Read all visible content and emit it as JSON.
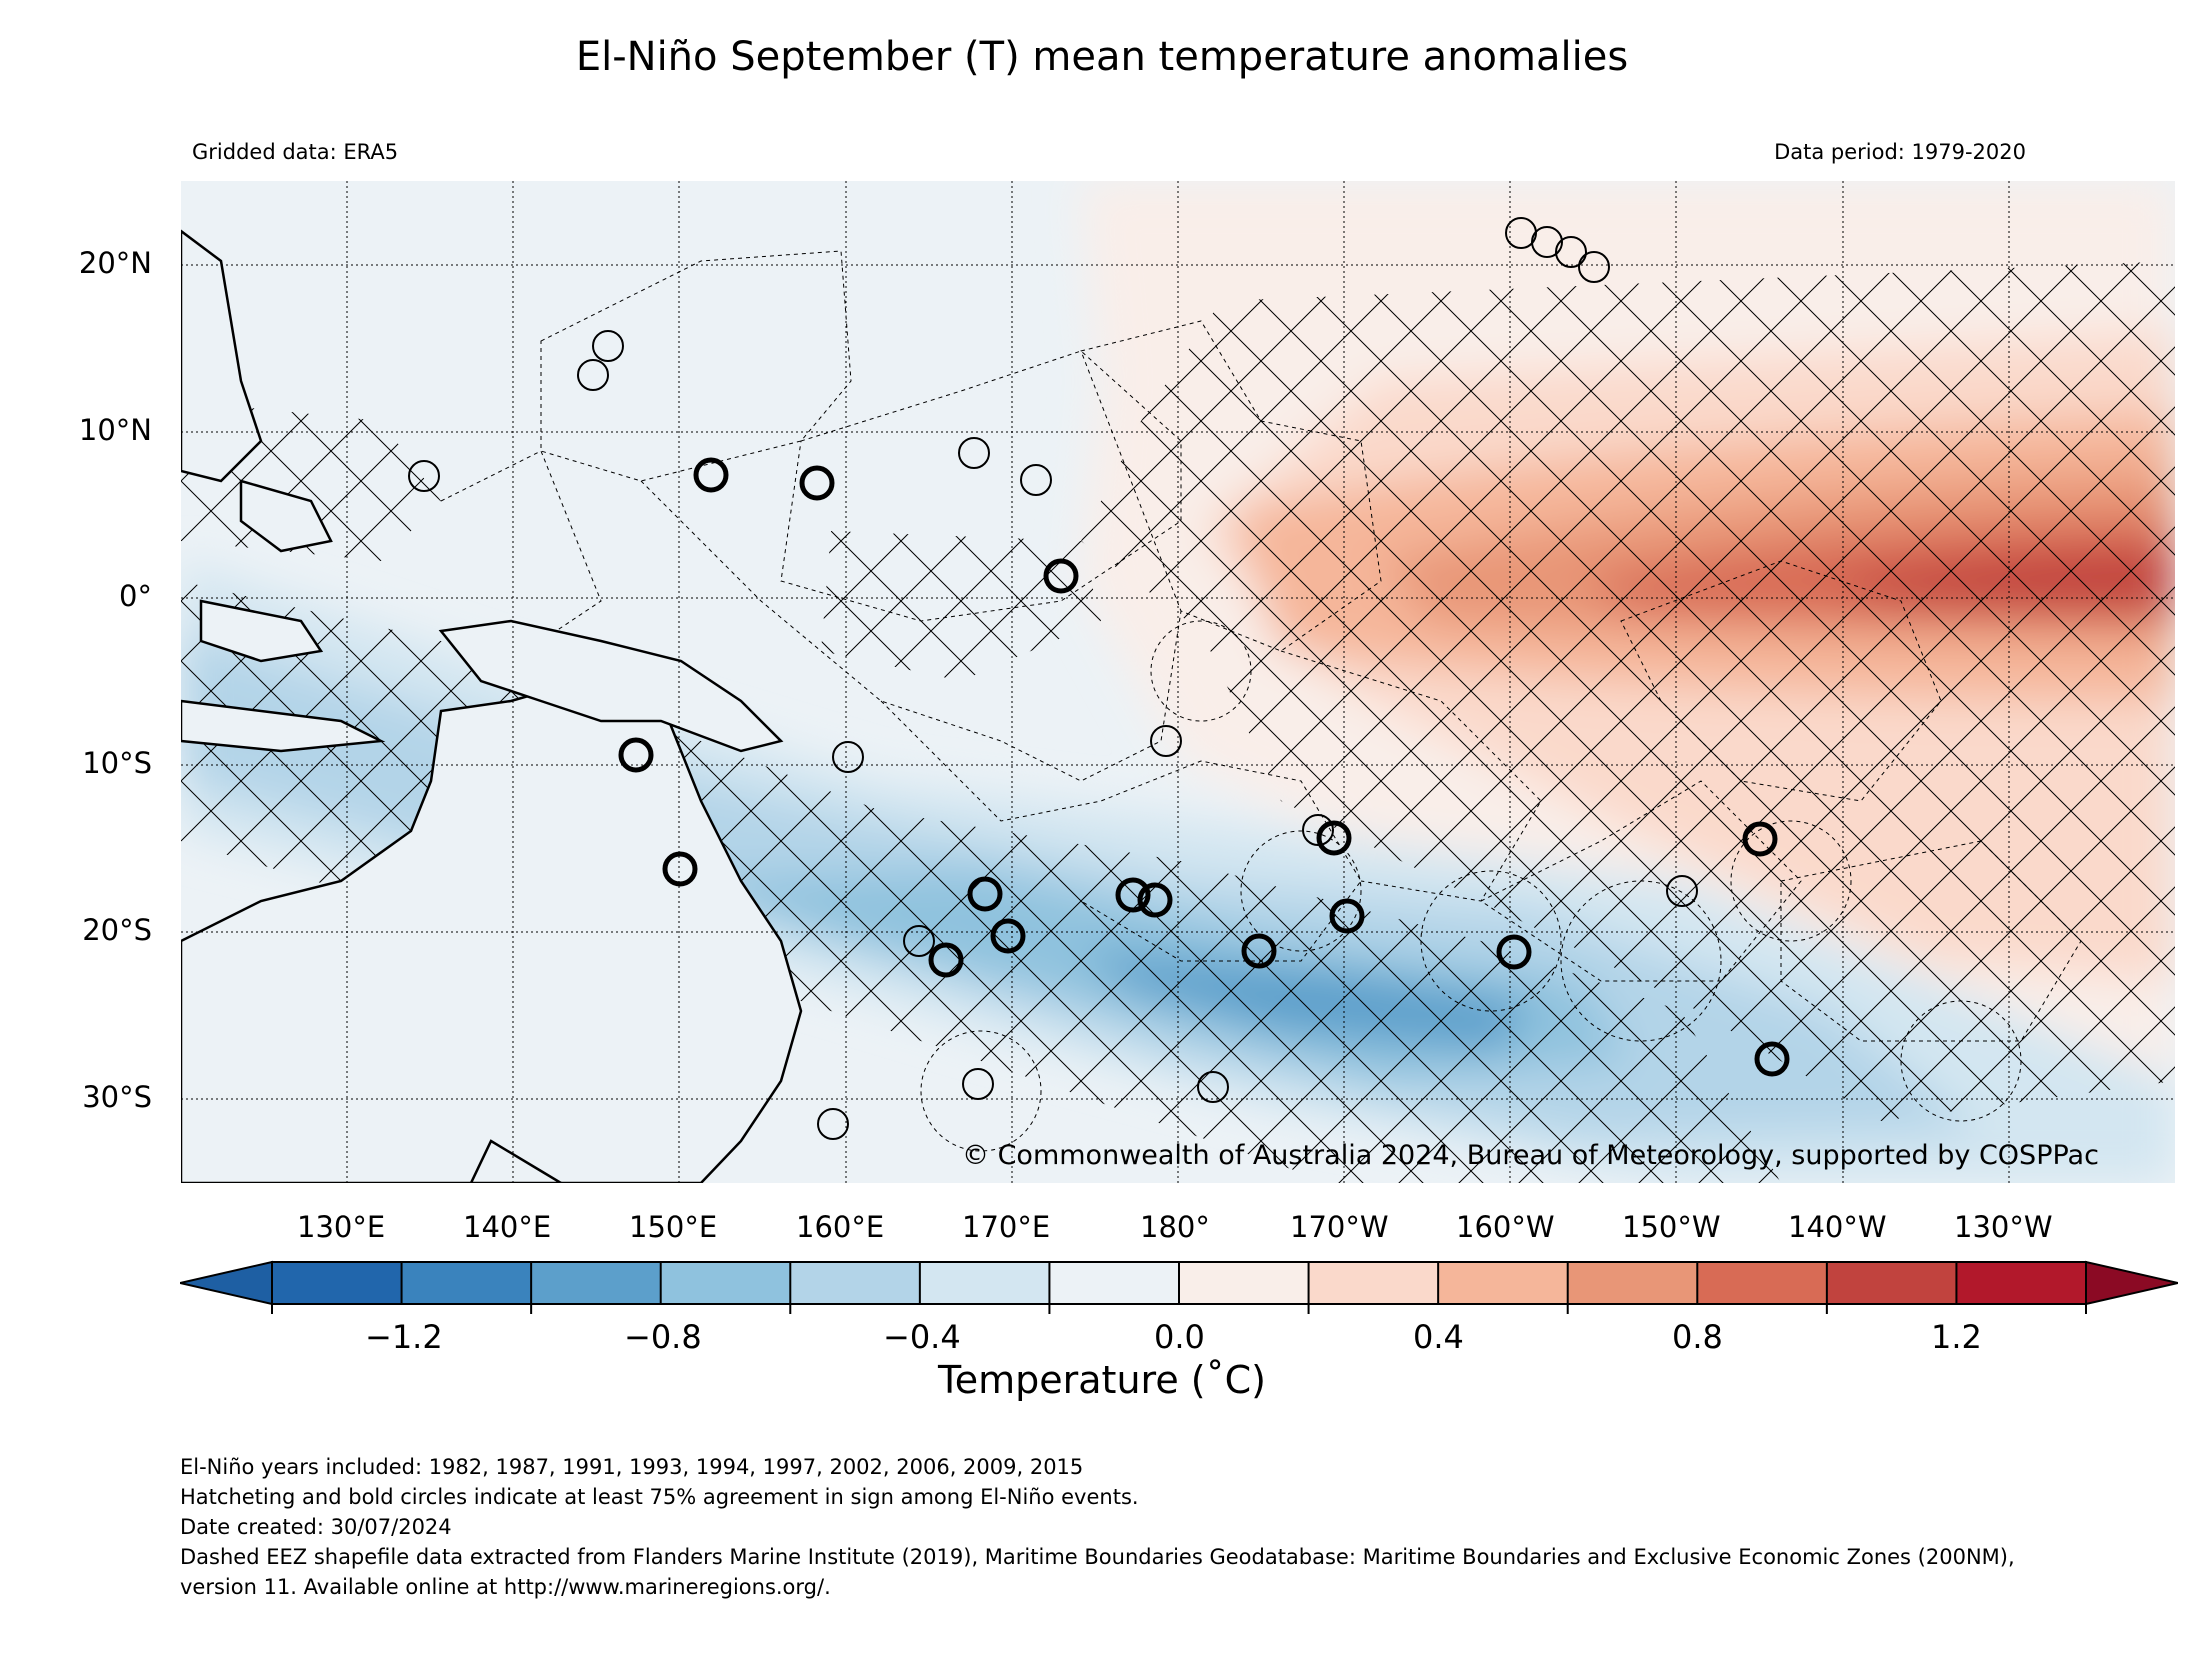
{
  "title": "El-Niño September (T) mean temperature anomalies",
  "gridded_data": "Gridded data: ERA5",
  "data_period": "Data period: 1979-2020",
  "copyright": "© Commonwealth of Australia 2024, Bureau of Meteorology, supported by COSPPac",
  "map": {
    "lon_ticks": [
      "130°E",
      "140°E",
      "150°E",
      "160°E",
      "170°E",
      "180°",
      "170°W",
      "160°W",
      "150°W",
      "140°W",
      "130°W"
    ],
    "lat_ticks": [
      "20°N",
      "10°N",
      "0°",
      "10°S",
      "20°S",
      "30°S"
    ],
    "lon_range": [
      120,
      240
    ],
    "lat_range": [
      -35,
      25
    ]
  },
  "colorbar": {
    "label": "Temperature (°C)",
    "label_display": "Temperature (˚C)",
    "tick_labels": [
      "−1.2",
      "−0.8",
      "−0.4",
      "0.0",
      "0.4",
      "0.8",
      "1.2"
    ],
    "levels": [
      -1.4,
      -1.2,
      -1.0,
      -0.8,
      -0.6,
      -0.4,
      -0.2,
      0.0,
      0.2,
      0.4,
      0.6,
      0.8,
      1.0,
      1.2,
      1.4
    ],
    "colors": [
      "#2166ac",
      "#3a83bd",
      "#5c9fcb",
      "#8fc2de",
      "#b3d4e8",
      "#d3e6f1",
      "#ecf2f6",
      "#f9eee9",
      "#fad9cb",
      "#f5b69a",
      "#e89677",
      "#d86b55",
      "#c1433e",
      "#b2182b"
    ],
    "under_color": "#1e5fa3",
    "over_color": "#8b0a24"
  },
  "footnotes": [
    "El-Niño years included: 1982, 1987, 1991, 1993, 1994, 1997, 2002, 2006, 2009, 2015",
    "Hatcheting and bold circles indicate at least 75% agreement in sign among El-Niño events.",
    "Date created: 30/07/2024",
    "Dashed EEZ shapefile data extracted from Flanders Marine Institute (2019), Maritime Boundaries Geodatabase: Maritime Boundaries and Exclusive Economic Zones (200NM),",
    "version 11. Available online at http://www.marineregions.org/."
  ]
}
